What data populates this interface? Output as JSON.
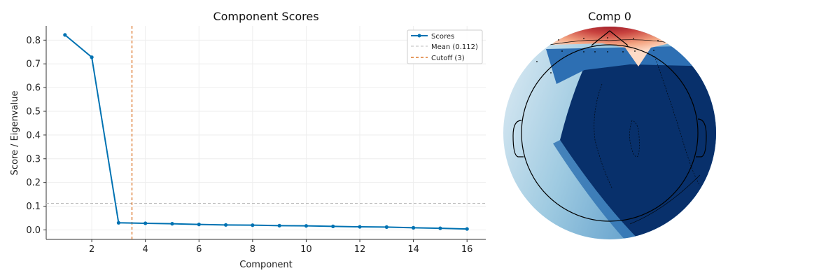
{
  "chart_data": [
    {
      "type": "line",
      "title": "Component Scores",
      "xlabel": "Component",
      "ylabel": "Score / Eigenvalue",
      "xlim": [
        0.3,
        16.7
      ],
      "ylim": [
        -0.04,
        0.86
      ],
      "xticks": [
        2,
        4,
        6,
        8,
        10,
        12,
        14,
        16
      ],
      "yticks": [
        0.0,
        0.1,
        0.2,
        0.3,
        0.4,
        0.5,
        0.6,
        0.7,
        0.8
      ],
      "grid": true,
      "legend_position": "top-right",
      "series": [
        {
          "name": "Scores",
          "color": "#0072b2",
          "x": [
            1,
            2,
            3,
            4,
            5,
            6,
            7,
            8,
            9,
            10,
            11,
            12,
            13,
            14,
            15,
            16
          ],
          "values": [
            0.822,
            0.728,
            0.03,
            0.028,
            0.026,
            0.023,
            0.021,
            0.02,
            0.018,
            0.017,
            0.015,
            0.013,
            0.012,
            0.009,
            0.007,
            0.004
          ]
        }
      ],
      "reference_lines": [
        {
          "name": "Mean (0.112)",
          "orientation": "horizontal",
          "value": 0.112,
          "color": "#bbbbbb",
          "style": "dashed"
        },
        {
          "name": "Cutoff (3)",
          "orientation": "vertical",
          "value": 3.5,
          "color": "#d55e00",
          "style": "dashed"
        }
      ]
    },
    {
      "type": "heatmap",
      "title": "Comp 0",
      "colormap": "RdBu_r",
      "shape": "head topomap",
      "colors": {
        "positive": "#8b0a1f",
        "negative": "#08306b",
        "neutral": "#f7f7f7"
      }
    }
  ]
}
